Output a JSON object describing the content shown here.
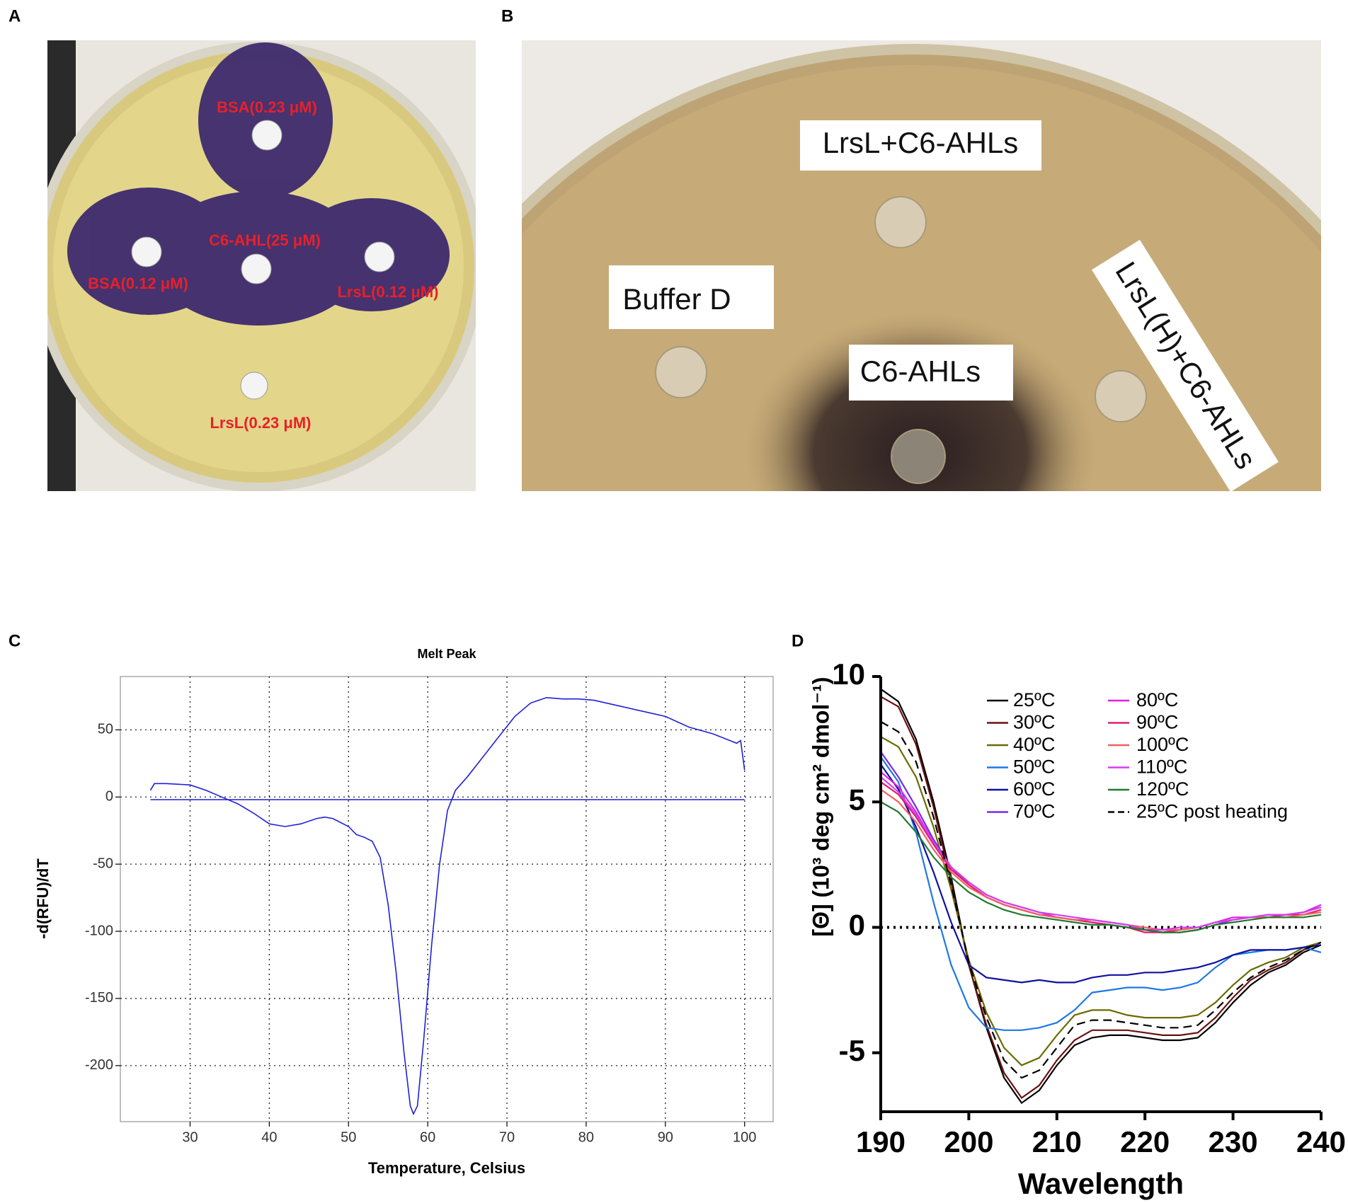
{
  "photos": [
    {
      "panel": "A",
      "labels": [
        "BSA(0.23 μM)",
        "C6-AHL(25 μM)",
        "BSA(0.12 μM)",
        "LrsL(0.12 μM)",
        "LrsL(0.23 μM)"
      ]
    },
    {
      "panel": "B",
      "labels": [
        "LrsL+C6-AHLs",
        "Buffer D",
        "C6-AHLs",
        "LrsL(H)+C6-AHLs"
      ]
    }
  ],
  "chart_data": [
    {
      "type": "line",
      "panel": "C",
      "title": "Melt Peak",
      "x_label": "Temperature, Celsius",
      "y_label": "-d(RFU)/dT",
      "xlim": [
        21.2,
        103.6
      ],
      "ylim": [
        -241.7,
        89.7
      ],
      "xticks": [
        30,
        40,
        50,
        60,
        70,
        80,
        90,
        100
      ],
      "yticks": [
        -200,
        -150,
        -100,
        -50,
        0,
        50
      ],
      "grid": true,
      "series": [
        {
          "color": "#2020d8",
          "x": [
            25,
            25.5,
            27,
            30,
            32,
            34,
            36,
            38,
            40,
            42,
            44,
            46,
            47,
            48,
            50,
            51,
            52,
            53,
            54,
            55,
            56,
            57,
            57.8,
            58.2,
            58.7,
            59.5,
            60.5,
            61.5,
            62.5,
            63.5,
            65,
            67,
            69,
            71,
            73,
            75,
            77,
            79,
            81,
            84,
            87,
            90,
            93,
            96,
            99,
            99.5,
            100
          ],
          "values": [
            5,
            10,
            10,
            9,
            5,
            0,
            -5,
            -12,
            -20,
            -22,
            -20,
            -16,
            -15,
            -16,
            -22,
            -28,
            -30,
            -33,
            -45,
            -80,
            -130,
            -190,
            -230,
            -236,
            -230,
            -180,
            -110,
            -50,
            -10,
            5,
            15,
            30,
            45,
            60,
            70,
            74,
            73,
            73,
            72,
            68,
            64,
            60,
            52,
            47,
            40,
            42,
            20
          ]
        },
        {
          "color": "#1a1ad0",
          "x": [
            25,
            100
          ],
          "values": [
            -2,
            -2
          ]
        }
      ]
    },
    {
      "type": "line",
      "panel": "D",
      "x_label": "Wavelength",
      "y_label": "[Θ] (10³ deg cm² dmol⁻¹)",
      "xlim": [
        190,
        240
      ],
      "ylim": [
        -7.35,
        10
      ],
      "xticks": [
        190,
        200,
        210,
        220,
        230,
        240
      ],
      "yticks": [
        -5,
        0,
        5,
        10
      ],
      "zero_line": true,
      "x": [
        190,
        192,
        194,
        196,
        198,
        200,
        202,
        204,
        206,
        208,
        210,
        212,
        214,
        216,
        218,
        220,
        222,
        224,
        226,
        228,
        230,
        232,
        234,
        236,
        238,
        240
      ],
      "series": [
        {
          "name": "25ºC",
          "color": "#000000",
          "values": [
            9.5,
            9.0,
            7.5,
            5.0,
            2.0,
            -1.5,
            -4.0,
            -6.0,
            -7.0,
            -6.5,
            -5.5,
            -4.7,
            -4.4,
            -4.3,
            -4.3,
            -4.4,
            -4.5,
            -4.5,
            -4.4,
            -3.8,
            -3.0,
            -2.3,
            -1.8,
            -1.5,
            -1.0,
            -0.7
          ]
        },
        {
          "name": "30ºC",
          "color": "#6b1010",
          "values": [
            9.2,
            8.8,
            7.3,
            4.8,
            1.8,
            -1.5,
            -3.9,
            -5.8,
            -6.8,
            -6.3,
            -5.3,
            -4.5,
            -4.1,
            -4.1,
            -4.1,
            -4.2,
            -4.3,
            -4.3,
            -4.2,
            -3.6,
            -2.8,
            -2.1,
            -1.7,
            -1.4,
            -0.9,
            -0.6
          ]
        },
        {
          "name": "40ºC",
          "color": "#6b6b00",
          "values": [
            7.6,
            7.2,
            6.0,
            4.0,
            1.5,
            -1.3,
            -3.4,
            -4.8,
            -5.5,
            -5.2,
            -4.3,
            -3.5,
            -3.3,
            -3.3,
            -3.5,
            -3.6,
            -3.6,
            -3.6,
            -3.5,
            -3.0,
            -2.3,
            -1.7,
            -1.4,
            -1.2,
            -0.8,
            -0.6
          ]
        },
        {
          "name": "50ºC",
          "color": "#1e78e6",
          "values": [
            6.8,
            5.8,
            3.8,
            1.0,
            -1.5,
            -3.2,
            -4.0,
            -4.1,
            -4.1,
            -4.0,
            -3.8,
            -3.3,
            -2.6,
            -2.5,
            -2.4,
            -2.4,
            -2.5,
            -2.4,
            -2.2,
            -1.6,
            -1.1,
            -1.0,
            -0.9,
            -0.9,
            -0.8,
            -1.0
          ]
        },
        {
          "name": "60ºC",
          "color": "#1010a0",
          "values": [
            6.5,
            5.5,
            4.0,
            2.2,
            0.2,
            -1.5,
            -2.0,
            -2.1,
            -2.2,
            -2.1,
            -2.2,
            -2.2,
            -2.0,
            -1.9,
            -1.9,
            -1.8,
            -1.8,
            -1.7,
            -1.6,
            -1.4,
            -1.1,
            -0.9,
            -0.9,
            -0.9,
            -0.8,
            -0.7
          ]
        },
        {
          "name": "70ºC",
          "color": "#7a2be0",
          "values": [
            7.0,
            6.0,
            4.8,
            3.5,
            2.4,
            1.7,
            1.2,
            0.9,
            0.7,
            0.5,
            0.4,
            0.3,
            0.2,
            0.1,
            0.0,
            -0.1,
            -0.2,
            -0.2,
            -0.1,
            0.1,
            0.3,
            0.4,
            0.5,
            0.5,
            0.6,
            0.8
          ]
        },
        {
          "name": "80ºC",
          "color": "#e020e0",
          "values": [
            6.2,
            5.6,
            4.6,
            3.4,
            2.4,
            1.8,
            1.3,
            1.0,
            0.8,
            0.6,
            0.4,
            0.3,
            0.3,
            0.2,
            0.1,
            -0.1,
            -0.1,
            -0.1,
            0.0,
            0.2,
            0.4,
            0.4,
            0.5,
            0.5,
            0.6,
            0.9
          ]
        },
        {
          "name": "90ºC",
          "color": "#e0206a",
          "values": [
            5.8,
            5.3,
            4.4,
            3.3,
            2.3,
            1.7,
            1.2,
            0.9,
            0.7,
            0.5,
            0.4,
            0.3,
            0.2,
            0.1,
            0.0,
            -0.2,
            -0.2,
            -0.1,
            0.0,
            0.2,
            0.3,
            0.4,
            0.4,
            0.5,
            0.5,
            0.7
          ]
        },
        {
          "name": "100ºC",
          "color": "#f06060",
          "values": [
            5.5,
            5.0,
            4.2,
            3.1,
            2.2,
            1.6,
            1.2,
            0.9,
            0.7,
            0.5,
            0.4,
            0.3,
            0.3,
            0.2,
            0.1,
            0.0,
            -0.1,
            -0.1,
            0.0,
            0.2,
            0.3,
            0.4,
            0.4,
            0.4,
            0.5,
            0.6
          ]
        },
        {
          "name": "110ºC",
          "color": "#d040f0",
          "values": [
            6.0,
            5.4,
            4.5,
            3.4,
            2.4,
            1.8,
            1.3,
            1.0,
            0.8,
            0.6,
            0.5,
            0.4,
            0.3,
            0.2,
            0.1,
            -0.1,
            -0.1,
            0.0,
            0.0,
            0.2,
            0.3,
            0.4,
            0.5,
            0.5,
            0.6,
            0.8
          ]
        },
        {
          "name": "120ºC",
          "color": "#207a30",
          "values": [
            5.0,
            4.6,
            3.8,
            2.8,
            2.0,
            1.4,
            1.0,
            0.7,
            0.5,
            0.4,
            0.3,
            0.2,
            0.1,
            0.1,
            0.0,
            -0.1,
            -0.2,
            -0.2,
            -0.1,
            0.1,
            0.2,
            0.3,
            0.4,
            0.4,
            0.4,
            0.5
          ]
        },
        {
          "name": "25ºC post heating",
          "color": "#000000",
          "dash": true,
          "values": [
            8.2,
            7.8,
            6.6,
            4.4,
            1.7,
            -1.4,
            -3.6,
            -5.3,
            -6.0,
            -5.7,
            -4.8,
            -3.9,
            -3.7,
            -3.7,
            -3.8,
            -3.9,
            -4.0,
            -4.0,
            -3.9,
            -3.3,
            -2.6,
            -2.0,
            -1.6,
            -1.3,
            -0.9,
            -0.6
          ]
        }
      ]
    }
  ]
}
